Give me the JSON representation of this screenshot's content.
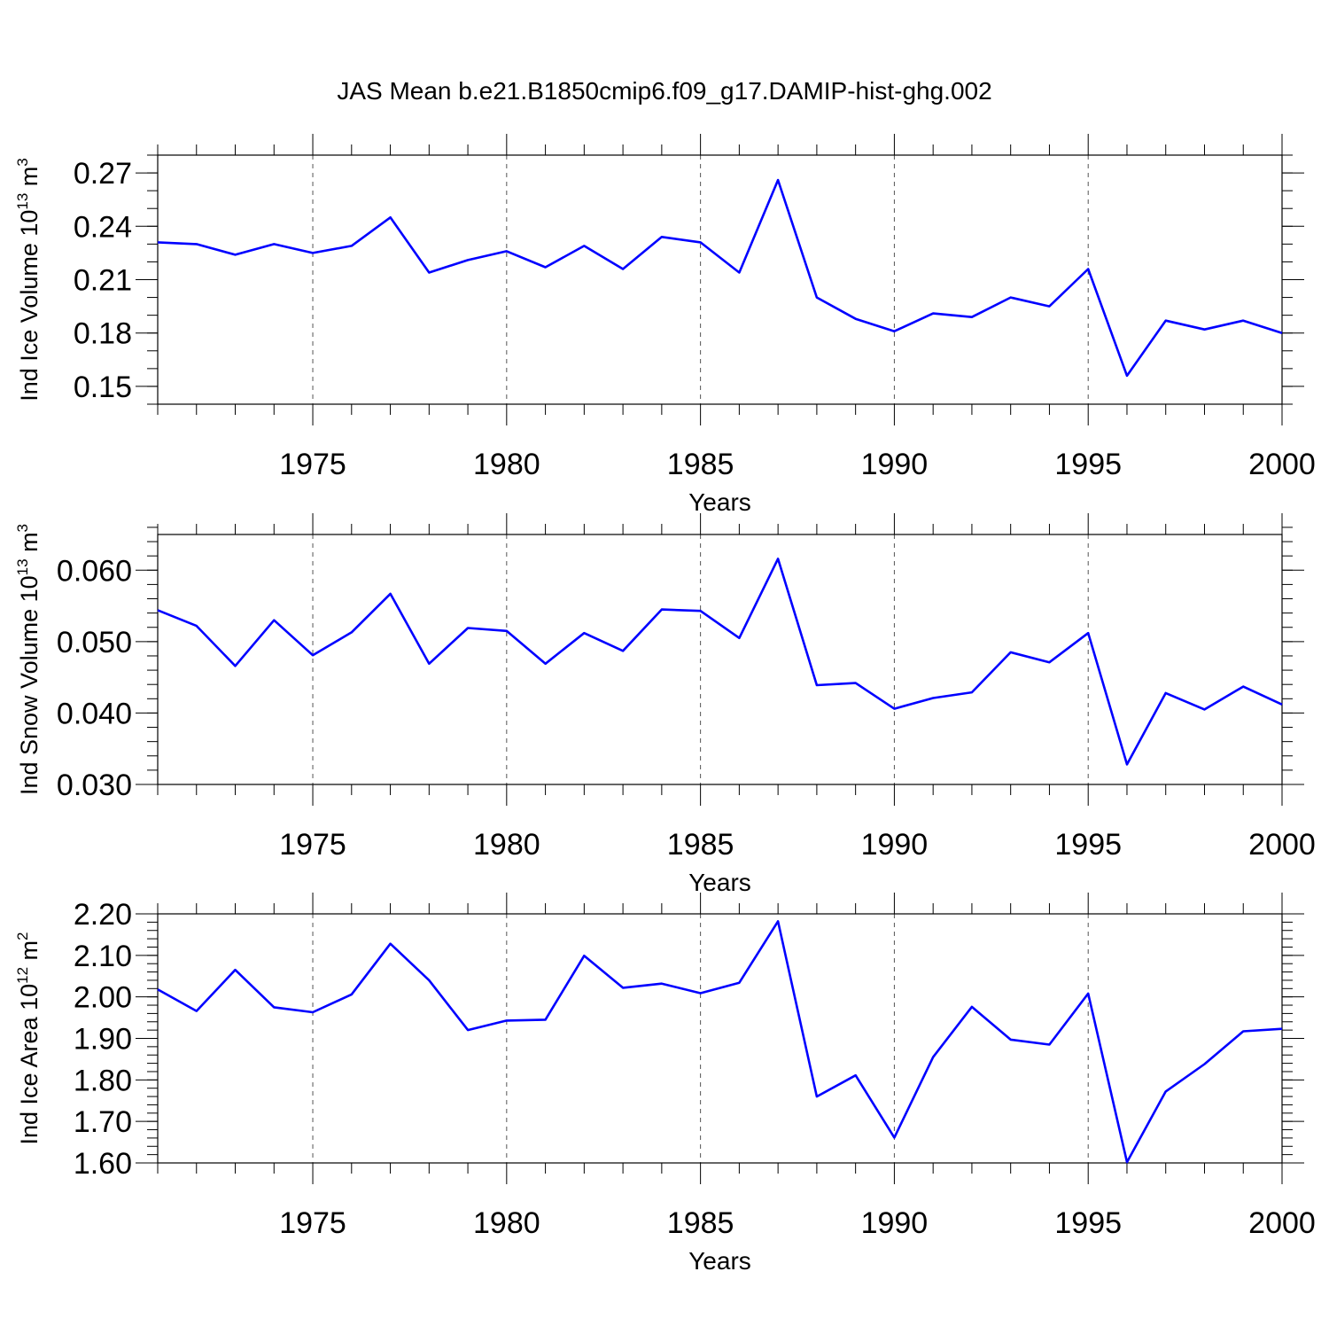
{
  "title": "JAS Mean b.e21.B1850cmip6.f09_g17.DAMIP-hist-ghg.002",
  "colors": {
    "line": "#0000ff",
    "axis": "#000000",
    "grid": "#555555"
  },
  "chart_data": [
    {
      "type": "line",
      "ylabel": {
        "text": "Ind Ice Volume 10",
        "exp": "13",
        "unit": " m",
        "unit_exp": "3"
      },
      "xlabel": "Years",
      "xlim": [
        1971,
        2000
      ],
      "ylim": [
        0.14,
        0.28
      ],
      "yticks": [
        0.15,
        0.18,
        0.21,
        0.24,
        0.27
      ],
      "ytick_labels": [
        "0.15",
        "0.18",
        "0.21",
        "0.24",
        "0.27"
      ],
      "yminor_step": 0.01,
      "xticks": [
        1975,
        1980,
        1985,
        1990,
        1995,
        2000
      ],
      "xtick_labels": [
        "1975",
        "1980",
        "1985",
        "1990",
        "1995",
        "2000"
      ],
      "grid": "vertical dashed at major x ticks",
      "x": [
        1971,
        1972,
        1973,
        1974,
        1975,
        1976,
        1977,
        1978,
        1979,
        1980,
        1981,
        1982,
        1983,
        1984,
        1985,
        1986,
        1987,
        1988,
        1989,
        1990,
        1991,
        1992,
        1993,
        1994,
        1995,
        1996,
        1997,
        1998,
        1999,
        2000
      ],
      "y": [
        0.231,
        0.23,
        0.224,
        0.23,
        0.225,
        0.229,
        0.245,
        0.214,
        0.221,
        0.226,
        0.217,
        0.229,
        0.216,
        0.234,
        0.231,
        0.214,
        0.266,
        0.2,
        0.188,
        0.181,
        0.191,
        0.189,
        0.2,
        0.195,
        0.216,
        0.156,
        0.187,
        0.182,
        0.187,
        0.18
      ]
    },
    {
      "type": "line",
      "ylabel": {
        "text": "Ind Snow Volume 10",
        "exp": "13",
        "unit": " m",
        "unit_exp": "3"
      },
      "xlabel": "Years",
      "xlim": [
        1971,
        2000
      ],
      "ylim": [
        0.03,
        0.065
      ],
      "yticks": [
        0.03,
        0.04,
        0.05,
        0.06
      ],
      "ytick_labels": [
        "0.030",
        "0.040",
        "0.050",
        "0.060"
      ],
      "yminor_step": 0.002,
      "xticks": [
        1975,
        1980,
        1985,
        1990,
        1995,
        2000
      ],
      "xtick_labels": [
        "1975",
        "1980",
        "1985",
        "1990",
        "1995",
        "2000"
      ],
      "grid": "vertical dashed at major x ticks",
      "x": [
        1971,
        1972,
        1973,
        1974,
        1975,
        1976,
        1977,
        1978,
        1979,
        1980,
        1981,
        1982,
        1983,
        1984,
        1985,
        1986,
        1987,
        1988,
        1989,
        1990,
        1991,
        1992,
        1993,
        1994,
        1995,
        1996,
        1997,
        1998,
        1999,
        2000
      ],
      "y": [
        0.0544,
        0.0522,
        0.0466,
        0.053,
        0.0481,
        0.0513,
        0.0567,
        0.0469,
        0.0519,
        0.0515,
        0.0469,
        0.0512,
        0.0487,
        0.0545,
        0.0543,
        0.0505,
        0.0616,
        0.0439,
        0.0442,
        0.0406,
        0.0421,
        0.0429,
        0.0485,
        0.0471,
        0.0512,
        0.0328,
        0.0428,
        0.0405,
        0.0437,
        0.0412
      ]
    },
    {
      "type": "line",
      "ylabel": {
        "text": "Ind Ice Area 10",
        "exp": "12",
        "unit": " m",
        "unit_exp": "2"
      },
      "xlabel": "Years",
      "xlim": [
        1971,
        2000
      ],
      "ylim": [
        1.6,
        2.2
      ],
      "yticks": [
        1.6,
        1.7,
        1.8,
        1.9,
        2.0,
        2.1,
        2.2
      ],
      "ytick_labels": [
        "1.60",
        "1.70",
        "1.80",
        "1.90",
        "2.00",
        "2.10",
        "2.20"
      ],
      "yminor_step": 0.02,
      "xticks": [
        1975,
        1980,
        1985,
        1990,
        1995,
        2000
      ],
      "xtick_labels": [
        "1975",
        "1980",
        "1985",
        "1990",
        "1995",
        "2000"
      ],
      "grid": "vertical dashed at major x ticks",
      "x": [
        1971,
        1972,
        1973,
        1974,
        1975,
        1976,
        1977,
        1978,
        1979,
        1980,
        1981,
        1982,
        1983,
        1984,
        1985,
        1986,
        1987,
        1988,
        1989,
        1990,
        1991,
        1992,
        1993,
        1994,
        1995,
        1996,
        1997,
        1998,
        1999,
        2000
      ],
      "y": [
        2.018,
        1.966,
        2.065,
        1.975,
        1.963,
        2.006,
        2.128,
        2.04,
        1.92,
        1.943,
        1.945,
        2.099,
        2.022,
        2.032,
        2.009,
        2.034,
        2.182,
        1.76,
        1.811,
        1.661,
        1.855,
        1.976,
        1.897,
        1.885,
        2.008,
        1.602,
        1.772,
        1.838,
        1.917,
        1.923
      ]
    }
  ]
}
